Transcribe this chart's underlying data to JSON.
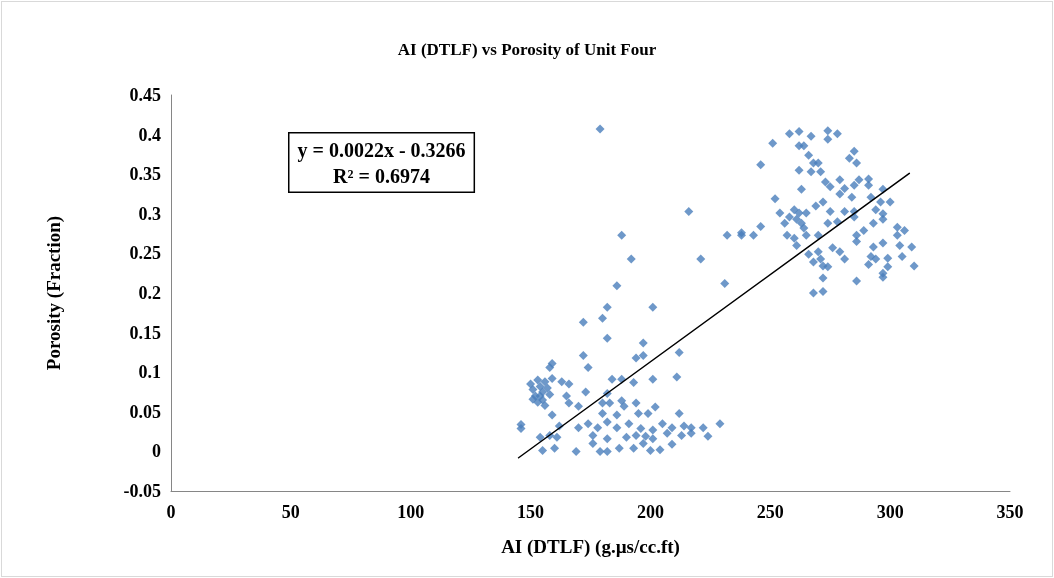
{
  "chart_data": {
    "type": "scatter",
    "title": "AI (DTLF) vs Porosity of Unit Four",
    "xlabel": "AI (DTLF) (g.µs/cc.ft)",
    "ylabel": "Porosity (Fraction)",
    "annotations": [
      "y = 0.0022x - 0.3266",
      "R² = 0.6974"
    ],
    "xlim": [
      0,
      350
    ],
    "xticks": [
      0,
      50,
      100,
      150,
      200,
      250,
      300,
      350
    ],
    "ylim": [
      -0.05,
      0.45
    ],
    "yticks": [
      -0.05,
      0,
      0.05,
      0.1,
      0.15,
      0.2,
      0.25,
      0.3,
      0.35,
      0.4,
      0.45
    ],
    "grid": false,
    "marker": "diamond",
    "series": [
      {
        "color": "#4a7ebb",
        "x": [
          179,
          216,
          188,
          232,
          238,
          192,
          221,
          231,
          186,
          182,
          201,
          180,
          172,
          182,
          197,
          172,
          197,
          194,
          212,
          159,
          158,
          174,
          163,
          166,
          184,
          188,
          193,
          201,
          211,
          173,
          165,
          166,
          170,
          182,
          180,
          183,
          188,
          189,
          194,
          202,
          159,
          180,
          186,
          195,
          199,
          212,
          146,
          146,
          162,
          170,
          174,
          178,
          182,
          186,
          191,
          196,
          201,
          205,
          209,
          214,
          217,
          222,
          229,
          154,
          158,
          161,
          176,
          182,
          190,
          194,
          198,
          201,
          207,
          213,
          217,
          224,
          155,
          160,
          169,
          176,
          179,
          182,
          187,
          193,
          197,
          200,
          204,
          209,
          150,
          151,
          152,
          153,
          154,
          155,
          155,
          156,
          157,
          153,
          151,
          158,
          159,
          156,
          154,
          258,
          262,
          267,
          274,
          274,
          278,
          251,
          262,
          264,
          285,
          266,
          283,
          268,
          270,
          286,
          246,
          262,
          267,
          271,
          279,
          287,
          291,
          273,
          285,
          291,
          275,
          281,
          263,
          297,
          279,
          284,
          252,
          292,
          296,
          300,
          272,
          269,
          275,
          281,
          260,
          254,
          262,
          265,
          294,
          285,
          258,
          297,
          285,
          297,
          256,
          261,
          263,
          274,
          278,
          293,
          246,
          264,
          303,
          306,
          289,
          238,
          243,
          257,
          265,
          270,
          286,
          303,
          260,
          286,
          297,
          261,
          293,
          304,
          309,
          276,
          279,
          270,
          266,
          281,
          292,
          294,
          299,
          305,
          268,
          271,
          291,
          272,
          274,
          299,
          310,
          297,
          297,
          272,
          286,
          272,
          268
        ],
        "values": [
          0.407,
          0.303,
          0.273,
          0.273,
          0.273,
          0.243,
          0.243,
          0.212,
          0.209,
          0.182,
          0.182,
          0.168,
          0.163,
          0.143,
          0.137,
          0.121,
          0.121,
          0.118,
          0.125,
          0.111,
          0.106,
          0.106,
          0.088,
          0.085,
          0.091,
          0.091,
          0.087,
          0.091,
          0.094,
          0.075,
          0.07,
          0.061,
          0.057,
          0.073,
          0.061,
          0.061,
          0.064,
          0.057,
          0.061,
          0.056,
          0.046,
          0.048,
          0.046,
          0.048,
          0.048,
          0.048,
          0.034,
          0.029,
          0.032,
          0.03,
          0.035,
          0.03,
          0.037,
          0.03,
          0.035,
          0.029,
          0.027,
          0.035,
          0.03,
          0.032,
          0.03,
          0.03,
          0.035,
          0.018,
          0.02,
          0.018,
          0.02,
          0.016,
          0.018,
          0.02,
          0.019,
          0.016,
          0.023,
          0.02,
          0.023,
          0.019,
          0.001,
          0.004,
          0,
          0.01,
          0,
          0,
          0.004,
          0.004,
          0.01,
          0.001,
          0.002,
          0.009,
          0.085,
          0.078,
          0.07,
          0.09,
          0.082,
          0.075,
          0.065,
          0.088,
          0.08,
          0.062,
          0.066,
          0.072,
          0.092,
          0.058,
          0.07,
          0.401,
          0.404,
          0.398,
          0.405,
          0.394,
          0.401,
          0.389,
          0.386,
          0.386,
          0.379,
          0.374,
          0.37,
          0.364,
          0.364,
          0.364,
          0.362,
          0.355,
          0.353,
          0.353,
          0.343,
          0.343,
          0.344,
          0.34,
          0.336,
          0.336,
          0.334,
          0.332,
          0.331,
          0.331,
          0.325,
          0.321,
          0.319,
          0.321,
          0.315,
          0.315,
          0.315,
          0.31,
          0.303,
          0.303,
          0.305,
          0.301,
          0.301,
          0.301,
          0.305,
          0.303,
          0.296,
          0.3,
          0.296,
          0.293,
          0.288,
          0.293,
          0.288,
          0.288,
          0.29,
          0.288,
          0.284,
          0.282,
          0.283,
          0.279,
          0.279,
          0.276,
          0.273,
          0.273,
          0.273,
          0.273,
          0.273,
          0.273,
          0.269,
          0.265,
          0.263,
          0.26,
          0.258,
          0.26,
          0.258,
          0.257,
          0.252,
          0.252,
          0.249,
          0.243,
          0.246,
          0.243,
          0.244,
          0.246,
          0.239,
          0.243,
          0.236,
          0.234,
          0.233,
          0.233,
          0.234,
          0.225,
          0.22,
          0.219,
          0.215,
          0.202,
          0.2
        ]
      },
      {
        "type": "line",
        "color": "#000000",
        "marker": "none",
        "line_style": "solid",
        "x": [
          145,
          308
        ],
        "values": [
          -0.008,
          0.351
        ]
      }
    ]
  }
}
